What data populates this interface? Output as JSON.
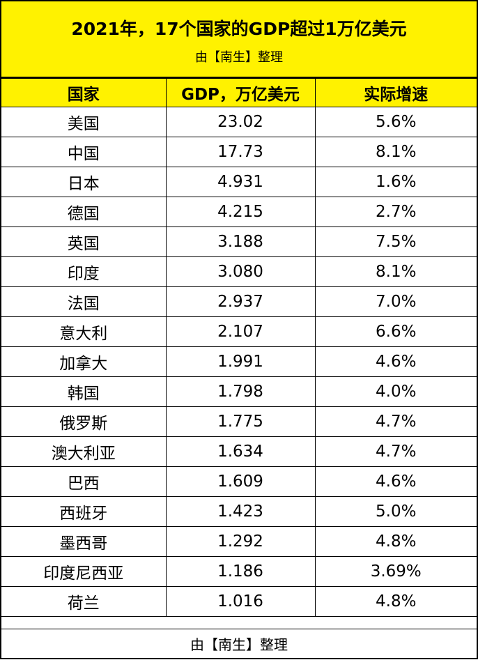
{
  "header": {
    "title": "2021年，17个国家的GDP超过1万亿美元",
    "subtitle": "由【南生】整理"
  },
  "table": {
    "columns": [
      "国家",
      "GDP，万亿美元",
      "实际增速"
    ],
    "rows": [
      [
        "美国",
        "23.02",
        "5.6%"
      ],
      [
        "中国",
        "17.73",
        "8.1%"
      ],
      [
        "日本",
        "4.931",
        "1.6%"
      ],
      [
        "德国",
        "4.215",
        "2.7%"
      ],
      [
        "英国",
        "3.188",
        "7.5%"
      ],
      [
        "印度",
        "3.080",
        "8.1%"
      ],
      [
        "法国",
        "2.937",
        "7.0%"
      ],
      [
        "意大利",
        "2.107",
        "6.6%"
      ],
      [
        "加拿大",
        "1.991",
        "4.6%"
      ],
      [
        "韩国",
        "1.798",
        "4.0%"
      ],
      [
        "俄罗斯",
        "1.775",
        "4.7%"
      ],
      [
        "澳大利亚",
        "1.634",
        "4.7%"
      ],
      [
        "巴西",
        "1.609",
        "4.6%"
      ],
      [
        "西班牙",
        "1.423",
        "5.0%"
      ],
      [
        "墨西哥",
        "1.292",
        "4.8%"
      ],
      [
        "印度尼西亚",
        "1.186",
        "3.69%"
      ],
      [
        "荷兰",
        "1.016",
        "4.8%"
      ]
    ]
  },
  "footer": "由【南生】整理"
}
